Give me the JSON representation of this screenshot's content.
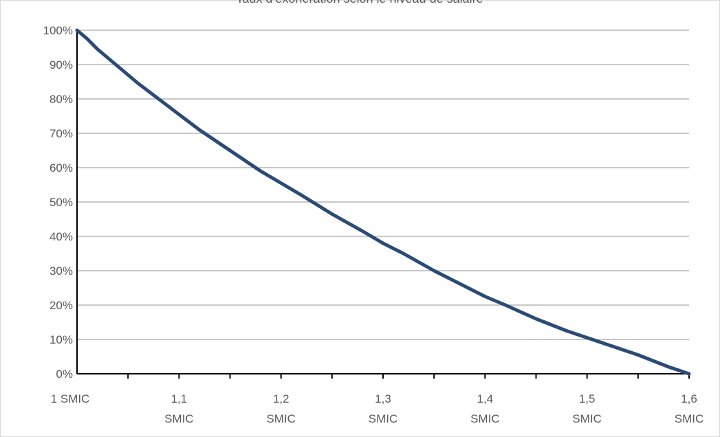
{
  "chart_data": {
    "type": "line",
    "title": "Taux d’exonération selon le niveau de salaire",
    "xlabel": "",
    "ylabel": "",
    "x_tick_labels": [
      [
        "1 SMIC"
      ],
      [
        "1,1",
        "SMIC"
      ],
      [
        "1,2",
        "SMIC"
      ],
      [
        "1,3",
        "SMIC"
      ],
      [
        "1,4",
        "SMIC"
      ],
      [
        "1,5",
        "SMIC"
      ],
      [
        "1,6",
        "SMIC"
      ]
    ],
    "x_ticks": [
      1.0,
      1.1,
      1.2,
      1.3,
      1.4,
      1.5,
      1.6
    ],
    "y_tick_labels": [
      "0%",
      "10%",
      "20%",
      "30%",
      "40%",
      "50%",
      "60%",
      "70%",
      "80%",
      "90%",
      "100%"
    ],
    "ylim": [
      0,
      1
    ],
    "xlim": [
      1.0,
      1.6
    ],
    "grid": true,
    "series": [
      {
        "color": "#2b4b77",
        "x": [
          1.0,
          1.01,
          1.02,
          1.04,
          1.06,
          1.08,
          1.1,
          1.12,
          1.15,
          1.18,
          1.2,
          1.22,
          1.25,
          1.28,
          1.3,
          1.32,
          1.35,
          1.38,
          1.4,
          1.42,
          1.45,
          1.48,
          1.5,
          1.52,
          1.55,
          1.58,
          1.6
        ],
        "y": [
          1.0,
          0.975,
          0.945,
          0.895,
          0.845,
          0.8,
          0.755,
          0.71,
          0.65,
          0.59,
          0.555,
          0.52,
          0.465,
          0.415,
          0.38,
          0.35,
          0.3,
          0.255,
          0.225,
          0.2,
          0.16,
          0.125,
          0.105,
          0.085,
          0.055,
          0.02,
          0.0
        ]
      }
    ]
  }
}
